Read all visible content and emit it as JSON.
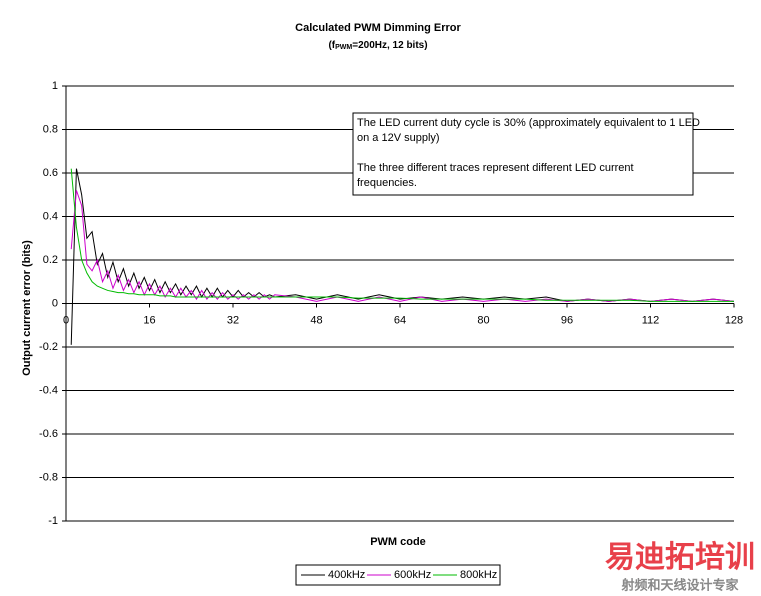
{
  "chart_data": {
    "type": "line",
    "title": "Calculated PWM Dimming Error",
    "subtitle": {
      "prefix": "(f",
      "subscript": "PWM",
      "suffix": "=200Hz, 12 bits)"
    },
    "x_label": "PWM code",
    "y_label": "Output current error (bits)",
    "annotation": [
      [
        "The LED current duty cycle is 30% (approximately equivalent to 1 LED",
        "on a 12V supply)"
      ],
      [
        "The three different traces represent different LED current",
        "frequencies."
      ]
    ],
    "x": [
      1,
      2,
      3,
      4,
      5,
      6,
      7,
      8,
      9,
      10,
      11,
      12,
      13,
      14,
      15,
      16,
      17,
      18,
      19,
      20,
      21,
      22,
      23,
      24,
      25,
      26,
      27,
      28,
      29,
      30,
      31,
      32,
      33,
      34,
      35,
      36,
      37,
      38,
      39,
      40,
      44,
      48,
      52,
      56,
      60,
      64,
      68,
      72,
      76,
      80,
      84,
      88,
      92,
      96,
      100,
      104,
      108,
      112,
      116,
      120,
      124,
      128
    ],
    "series": [
      {
        "name": "400kHz",
        "color": "#000000",
        "values": [
          -0.19,
          0.62,
          0.5,
          0.3,
          0.33,
          0.18,
          0.23,
          0.12,
          0.19,
          0.1,
          0.16,
          0.08,
          0.14,
          0.07,
          0.12,
          0.06,
          0.11,
          0.05,
          0.1,
          0.05,
          0.09,
          0.04,
          0.08,
          0.04,
          0.08,
          0.03,
          0.07,
          0.03,
          0.07,
          0.03,
          0.06,
          0.03,
          0.06,
          0.03,
          0.05,
          0.03,
          0.05,
          0.03,
          0.04,
          0.03,
          0.04,
          0.02,
          0.04,
          0.02,
          0.04,
          0.02,
          0.03,
          0.02,
          0.03,
          0.02,
          0.03,
          0.02,
          0.03,
          0.01,
          0.02,
          0.01,
          0.02,
          0.01,
          0.02,
          0.01,
          0.02,
          0.01
        ]
      },
      {
        "name": "600kHz",
        "color": "#cc00cc",
        "values": [
          0.25,
          0.52,
          0.45,
          0.18,
          0.15,
          0.2,
          0.1,
          0.15,
          0.07,
          0.13,
          0.06,
          0.11,
          0.05,
          0.1,
          0.04,
          0.09,
          0.04,
          0.08,
          0.03,
          0.07,
          0.03,
          0.07,
          0.03,
          0.06,
          0.02,
          0.06,
          0.02,
          0.05,
          0.02,
          0.05,
          0.02,
          0.04,
          0.02,
          0.04,
          0.02,
          0.04,
          0.02,
          0.04,
          0.02,
          0.04,
          0.03,
          0.01,
          0.03,
          0.01,
          0.03,
          0.01,
          0.03,
          0.01,
          0.02,
          0.01,
          0.02,
          0.01,
          0.02,
          0.01,
          0.02,
          0.01,
          0.02,
          0.01,
          0.02,
          0.01,
          0.02,
          0.01
        ]
      },
      {
        "name": "800kHz",
        "color": "#00bb00",
        "values": [
          0.62,
          0.35,
          0.2,
          0.14,
          0.1,
          0.08,
          0.07,
          0.06,
          0.055,
          0.05,
          0.05,
          0.045,
          0.045,
          0.04,
          0.04,
          0.04,
          0.04,
          0.035,
          0.035,
          0.035,
          0.03,
          0.03,
          0.03,
          0.03,
          0.03,
          0.03,
          0.03,
          0.03,
          0.03,
          0.03,
          0.03,
          0.03,
          0.03,
          0.03,
          0.03,
          0.03,
          0.03,
          0.03,
          0.03,
          0.03,
          0.03,
          0.03,
          0.03,
          0.025,
          0.025,
          0.025,
          0.02,
          0.02,
          0.02,
          0.02,
          0.02,
          0.02,
          0.015,
          0.015,
          0.015,
          0.015,
          0.015,
          0.01,
          0.01,
          0.01,
          0.01,
          0.01
        ]
      }
    ],
    "xlim": [
      0,
      128
    ],
    "xticks": [
      0,
      16,
      32,
      48,
      64,
      80,
      96,
      112,
      128
    ],
    "ylim": [
      -1,
      1
    ],
    "yticks": [
      1,
      0.8,
      0.6,
      0.4,
      0.2,
      0,
      -0.2,
      -0.4,
      -0.6,
      -0.8,
      -1
    ],
    "grid": true
  },
  "watermark": {
    "title": "易迪拓培训",
    "subtitle": "射频和天线设计专家"
  }
}
